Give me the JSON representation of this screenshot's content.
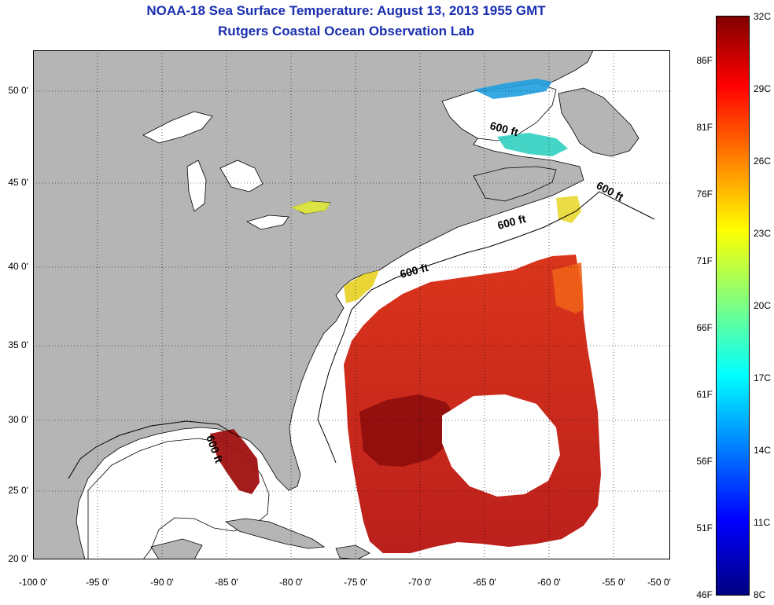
{
  "title": "NOAA-18 Sea Surface Temperature:  August 13, 2013 1955 GMT",
  "subtitle": "Rutgers Coastal Ocean Observation Lab",
  "lat_ticks": [
    "50 0'",
    "45 0'",
    "40 0'",
    "35 0'",
    "30 0'",
    "25 0'",
    "20 0'"
  ],
  "lon_ticks": [
    "-100 0'",
    "-95 0'",
    "-90 0'",
    "-85 0'",
    "-80 0'",
    "-75 0'",
    "-70 0'",
    "-65 0'",
    "-60 0'",
    "-55 0'",
    "-50 0'"
  ],
  "contour_labels": [
    "600 ft",
    "600 ft",
    "600 ft",
    "600 ft",
    "600 ft"
  ],
  "colorbar": {
    "celsius": [
      "32C",
      "29C",
      "26C",
      "23C",
      "20C",
      "17C",
      "14C",
      "11C",
      "8C"
    ],
    "fahrenheit": [
      "86F",
      "81F",
      "76F",
      "71F",
      "66F",
      "61F",
      "56F",
      "51F",
      "46F"
    ]
  },
  "colors": {
    "land": "#b5b5b5",
    "ocean_no_data": "#ffffff",
    "title": "#1a2fb0",
    "grid": "#000000"
  }
}
